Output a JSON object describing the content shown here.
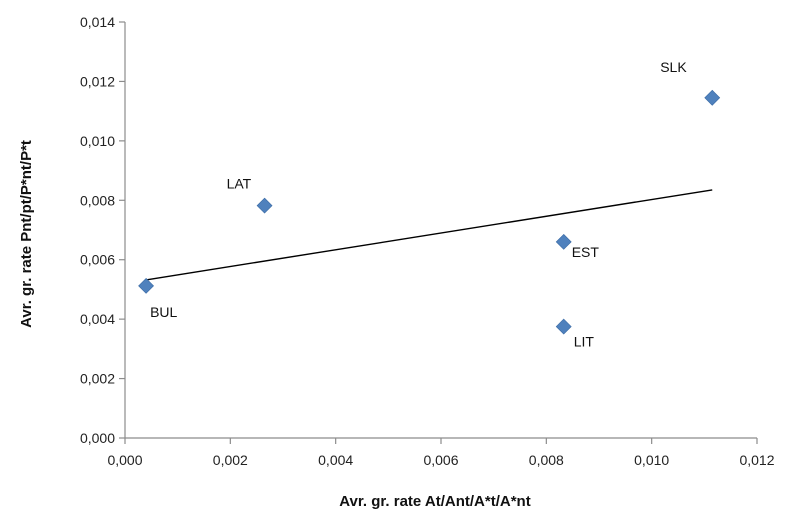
{
  "chart_data": {
    "type": "scatter",
    "title": "",
    "xlabel": "Avr. gr. rate At/Ant/A*t/A*nt",
    "ylabel": "Avr. gr. rate Pnt/pt/P*nt/P*t",
    "xlim": [
      0,
      0.012
    ],
    "ylim": [
      0,
      0.014
    ],
    "grid": false,
    "legend": "none",
    "x_ticks": [
      "0,000",
      "0,002",
      "0,004",
      "0,006",
      "0,008",
      "0,010",
      "0,012"
    ],
    "y_ticks": [
      "0,000",
      "0,002",
      "0,004",
      "0,006",
      "0,008",
      "0,010",
      "0,012",
      "0,014"
    ],
    "points": [
      {
        "label": "BUL",
        "x": 0.0004,
        "y": 0.00512
      },
      {
        "label": "LAT",
        "x": 0.00265,
        "y": 0.00782
      },
      {
        "label": "EST",
        "x": 0.00833,
        "y": 0.0066
      },
      {
        "label": "LIT",
        "x": 0.00833,
        "y": 0.00375
      },
      {
        "label": "SLK",
        "x": 0.01115,
        "y": 0.01145
      }
    ],
    "trendline": {
      "type": "linear",
      "x": [
        0.0004,
        0.01115
      ],
      "y": [
        0.00532,
        0.00835
      ]
    },
    "marker_color": "#4F81BD",
    "line_color": "#000000"
  }
}
